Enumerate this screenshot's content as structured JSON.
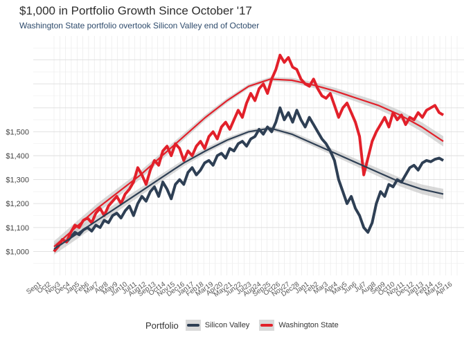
{
  "title": "$1,000 in Portfolio Growth Since October '17",
  "subtitle": "Washington State portfolio overtook Silicon Valley end of October",
  "legend": {
    "title": "Portfolio",
    "items": [
      {
        "label": "Silicon Valley",
        "color": "#2e3f54"
      },
      {
        "label": "Washington State",
        "color": "#e2202a"
      }
    ]
  },
  "chart_data": {
    "type": "line",
    "title": "$1,000 in Portfolio Growth Since October '17",
    "subtitle": "Washington State portfolio overtook Silicon Valley end of October",
    "xlabel": "",
    "ylabel": "",
    "y_ticks": [
      1000,
      1100,
      1200,
      1300,
      1400,
      1500
    ],
    "y_tick_labels": [
      "$1,000",
      "$1,100",
      "$1,200",
      "$1,300",
      "$1,400",
      "$1,500"
    ],
    "ylim": [
      900,
      1900
    ],
    "grid": true,
    "legend_position": "bottom",
    "x_tick_labels_note": "dense overlapping date tick labels along x-axis",
    "series": [
      {
        "name": "Silicon Valley",
        "color": "#2e3f54",
        "values": [
          1000,
          1025,
          1050,
          1040,
          1060,
          1080,
          1070,
          1090,
          1100,
          1085,
          1110,
          1100,
          1130,
          1120,
          1150,
          1160,
          1140,
          1170,
          1190,
          1150,
          1200,
          1230,
          1210,
          1250,
          1270,
          1230,
          1290,
          1260,
          1220,
          1280,
          1300,
          1280,
          1330,
          1350,
          1320,
          1340,
          1370,
          1380,
          1360,
          1400,
          1410,
          1390,
          1430,
          1420,
          1450,
          1460,
          1440,
          1470,
          1480,
          1510,
          1490,
          1520,
          1500,
          1540,
          1600,
          1550,
          1580,
          1540,
          1590,
          1550,
          1520,
          1560,
          1530,
          1500,
          1470,
          1450,
          1420,
          1380,
          1300,
          1250,
          1200,
          1230,
          1180,
          1150,
          1100,
          1080,
          1120,
          1200,
          1250,
          1230,
          1280,
          1270,
          1300,
          1290,
          1320,
          1350,
          1360,
          1340,
          1370,
          1380,
          1375,
          1385,
          1390,
          1380
        ]
      },
      {
        "name": "Washington State",
        "color": "#e2202a",
        "values": [
          1000,
          1020,
          1050,
          1040,
          1080,
          1110,
          1100,
          1130,
          1140,
          1120,
          1160,
          1180,
          1150,
          1190,
          1210,
          1230,
          1200,
          1240,
          1260,
          1290,
          1350,
          1320,
          1280,
          1340,
          1380,
          1360,
          1420,
          1440,
          1400,
          1450,
          1430,
          1380,
          1420,
          1400,
          1440,
          1460,
          1430,
          1480,
          1500,
          1470,
          1520,
          1540,
          1510,
          1550,
          1590,
          1560,
          1620,
          1660,
          1630,
          1680,
          1700,
          1660,
          1720,
          1760,
          1820,
          1790,
          1810,
          1770,
          1760,
          1720,
          1700,
          1690,
          1720,
          1680,
          1650,
          1640,
          1660,
          1610,
          1560,
          1600,
          1620,
          1580,
          1540,
          1480,
          1320,
          1390,
          1460,
          1500,
          1530,
          1560,
          1520,
          1580,
          1550,
          1570,
          1530,
          1560,
          1550,
          1580,
          1560,
          1590,
          1600,
          1610,
          1580,
          1570
        ]
      }
    ],
    "trend_series": [
      {
        "name": "Silicon Valley",
        "color": "#2e3f54",
        "values": [
          1010,
          1070,
          1130,
          1190,
          1250,
          1310,
          1370,
          1420,
          1465,
          1500,
          1515,
          1490,
          1450,
          1410,
          1370,
          1330,
          1290,
          1260,
          1240
        ]
      },
      {
        "name": "Washington State",
        "color": "#e2202a",
        "values": [
          1020,
          1100,
          1180,
          1250,
          1320,
          1400,
          1480,
          1560,
          1630,
          1690,
          1720,
          1715,
          1695,
          1670,
          1640,
          1610,
          1570,
          1520,
          1460
        ]
      }
    ]
  }
}
